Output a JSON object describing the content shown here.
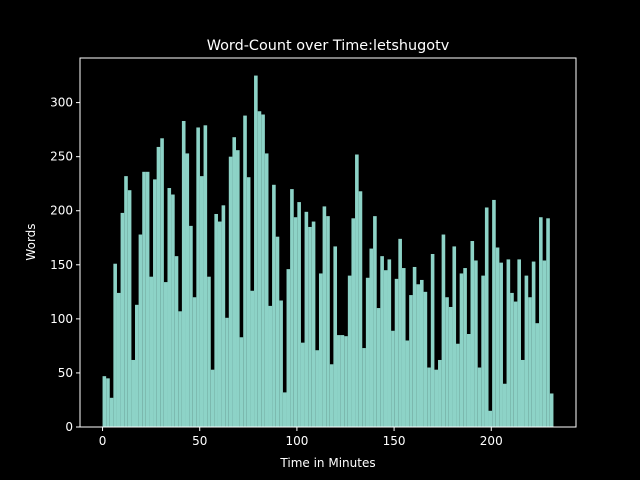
{
  "chart_data": {
    "type": "histogram",
    "title": "Word-Count over Time:letshugotv",
    "xlabel": "Time in Minutes",
    "ylabel": "Words",
    "color": "#8dd3c7",
    "bins": [
      0,
      1.86,
      3.71,
      5.57,
      7.42,
      9.28,
      11.14,
      12.99,
      14.85,
      16.7,
      18.56,
      20.42,
      22.27,
      24.13,
      25.98,
      27.84,
      29.7,
      31.55,
      33.41,
      35.26,
      37.12,
      38.98,
      40.83,
      42.69,
      44.54,
      46.4,
      48.26,
      50.11,
      51.97,
      53.82,
      55.68,
      57.54,
      59.39,
      61.25,
      63.1,
      64.96,
      66.82,
      68.67,
      70.53,
      72.38,
      74.24,
      76.1,
      77.95,
      79.81,
      81.66,
      83.52,
      85.38,
      87.23,
      89.09,
      90.94,
      92.8,
      94.66,
      96.51,
      98.37,
      100.22,
      102.08,
      103.94,
      105.79,
      107.65,
      109.5,
      111.36,
      113.22,
      115.07,
      116.93,
      118.78,
      120.64,
      122.5,
      124.35,
      126.21,
      128.06,
      129.92,
      131.78,
      133.63,
      135.49,
      137.34,
      139.2,
      141.06,
      142.91,
      144.77,
      146.62,
      148.48,
      150.34,
      152.19,
      154.05,
      155.9,
      157.76,
      159.62,
      161.47,
      163.33,
      165.18,
      167.04,
      168.9,
      170.75,
      172.61,
      174.46,
      176.32,
      178.18,
      180.03,
      181.89,
      183.74,
      185.6,
      187.46,
      189.31,
      191.17,
      193.02,
      194.88,
      196.74,
      198.59,
      200.45,
      202.3,
      204.16,
      206.02,
      207.87,
      209.73,
      211.58,
      213.44,
      215.3,
      217.15,
      219.01,
      220.86,
      222.72,
      224.58,
      226.43,
      228.29,
      230.14,
      232.0
    ],
    "values": [
      47,
      45,
      27,
      151,
      124,
      198,
      232,
      219,
      62,
      113,
      178,
      236,
      236,
      139,
      229,
      259,
      267,
      134,
      221,
      215,
      158,
      107,
      283,
      253,
      186,
      120,
      277,
      232,
      279,
      139,
      53,
      197,
      190,
      205,
      101,
      250,
      268,
      256,
      83,
      288,
      231,
      126,
      325,
      292,
      289,
      253,
      112,
      224,
      176,
      117,
      32,
      146,
      220,
      194,
      208,
      78,
      199,
      185,
      190,
      71,
      142,
      204,
      195,
      58,
      167,
      85,
      85,
      84,
      140,
      193,
      252,
      218,
      73,
      138,
      165,
      195,
      110,
      158,
      145,
      155,
      89,
      137,
      174,
      147,
      80,
      122,
      148,
      132,
      136,
      125,
      55,
      160,
      53,
      62,
      178,
      120,
      111,
      167,
      77,
      142,
      147,
      86,
      172,
      154,
      55,
      140,
      203,
      15,
      210,
      166,
      152,
      40,
      155,
      124,
      116,
      155,
      62,
      140,
      120,
      153,
      96,
      194,
      154,
      193,
      31
    ],
    "xlim": [
      -11.6,
      243.6
    ],
    "ylim": [
      0,
      341.25
    ],
    "xticks": [
      0,
      50,
      100,
      150,
      200
    ],
    "yticks": [
      0,
      50,
      100,
      150,
      200,
      250,
      300
    ]
  }
}
